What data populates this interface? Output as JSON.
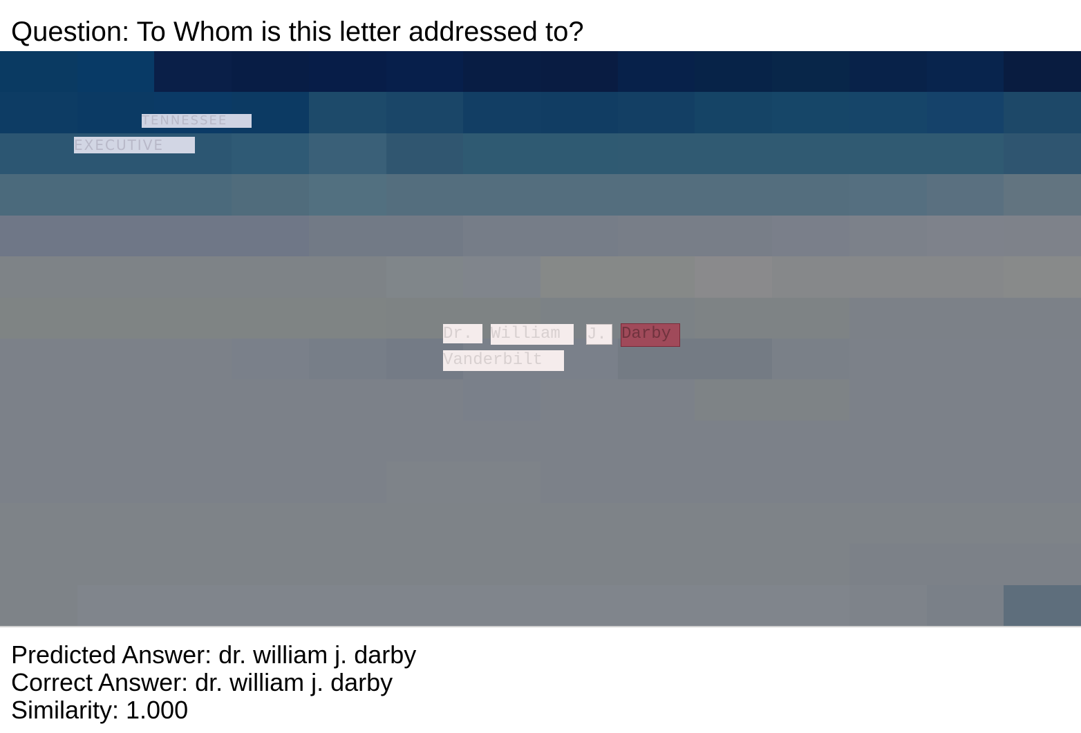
{
  "question_prefix": "Question: ",
  "question": "To Whom is this letter addressed to?",
  "document": {
    "header_words": [
      "TENNESSEE",
      "EXECUTIVE"
    ],
    "address_words": [
      "Dr.",
      "William",
      "J.",
      "Darby",
      "Vanderbilt"
    ],
    "highlighted_word": "Darby"
  },
  "results": {
    "predicted_label": "Predicted Answer: ",
    "predicted": "dr. william j. darby",
    "correct_label": "Correct Answer: ",
    "correct": "dr. william j. darby",
    "similarity_label": "Similarity: ",
    "similarity": "1.000"
  },
  "colors": {
    "top_dark": "#071a3c",
    "mid_teal": "#2f5a72",
    "body_gray": "#7c8189",
    "highlight": "#a04a5a"
  }
}
